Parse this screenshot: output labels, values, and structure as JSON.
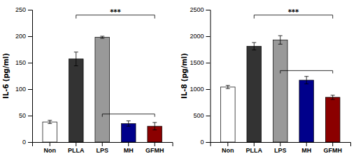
{
  "chart_data": [
    {
      "type": "bar",
      "ylabel": "IL-6 (pg/ml)",
      "categories": [
        "Non",
        "PLLA",
        "LPS",
        "MH",
        "GFMH"
      ],
      "values": [
        38,
        157,
        198,
        35,
        30
      ],
      "errors": [
        3,
        13,
        2,
        5,
        7
      ],
      "colors": [
        "#ffffff",
        "#333333",
        "#999999",
        "#00008B",
        "#8B0000"
      ],
      "ylim": [
        0,
        250
      ],
      "yticks": [
        0,
        50,
        100,
        150,
        200,
        250
      ],
      "grid": false,
      "brackets": [
        {
          "from": "PLLA",
          "to": "GFMH",
          "y": 240,
          "label": "***"
        },
        {
          "from": "LPS",
          "to": "GFMH",
          "y": 53
        }
      ]
    },
    {
      "type": "bar",
      "ylabel": "IL-8 (pg/ml)",
      "categories": [
        "Non",
        "PLLA",
        "LPS",
        "MH",
        "GFMH"
      ],
      "values": [
        1040,
        1810,
        1930,
        1170,
        845
      ],
      "errors": [
        30,
        70,
        80,
        70,
        40
      ],
      "colors": [
        "#ffffff",
        "#333333",
        "#999999",
        "#00008B",
        "#8B0000"
      ],
      "ylim": [
        0,
        2500
      ],
      "yticks": [
        0,
        500,
        1000,
        1500,
        2000,
        2500
      ],
      "grid": false,
      "brackets": [
        {
          "from": "PLLA",
          "to": "GFMH",
          "y": 2400,
          "label": "***"
        },
        {
          "from": "LPS",
          "to": "GFMH",
          "y": 1350
        }
      ]
    }
  ]
}
